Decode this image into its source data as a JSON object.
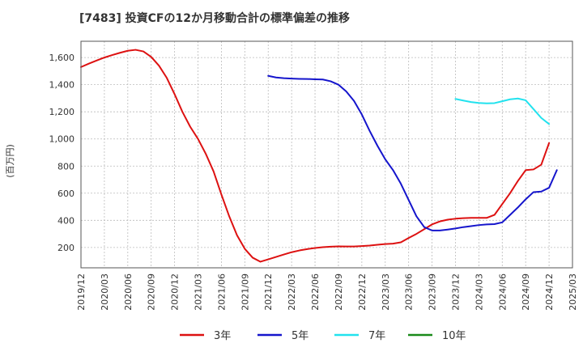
{
  "chart_data": {
    "type": "line",
    "title": "[7483]  投資CFの12か月移動合計の標準偏差の推移",
    "ylabel": "(百万円)",
    "xlabel": "",
    "ylim": [
      50,
      1720
    ],
    "yticks": [
      200,
      400,
      600,
      800,
      1000,
      1200,
      1400,
      1600
    ],
    "ytick_labels": [
      "200",
      "400",
      "600",
      "800",
      "1,000",
      "1,200",
      "1,400",
      "1,600"
    ],
    "xticks": [
      0,
      3,
      6,
      9,
      12,
      15,
      18,
      21,
      24,
      27,
      30,
      33,
      36,
      39,
      42,
      45,
      48,
      51,
      54,
      57,
      60,
      63
    ],
    "xtick_labels": [
      "2019/12",
      "2020/03",
      "2020/06",
      "2020/09",
      "2020/12",
      "2021/03",
      "2021/06",
      "2021/09",
      "2021/12",
      "2022/03",
      "2022/06",
      "2022/09",
      "2022/12",
      "2023/03",
      "2023/06",
      "2023/09",
      "2023/12",
      "2024/03",
      "2024/06",
      "2024/09",
      "2024/12",
      "2025/03"
    ],
    "xlim": [
      0,
      63
    ],
    "grid": true,
    "legend_position": "bottom",
    "series": [
      {
        "name": "3年",
        "color": "#dd1111",
        "start": 0,
        "values": [
          1530,
          1555,
          1578,
          1600,
          1618,
          1635,
          1650,
          1657,
          1645,
          1605,
          1540,
          1450,
          1330,
          1200,
          1090,
          1000,
          890,
          760,
          590,
          430,
          290,
          190,
          125,
          95,
          112,
          130,
          148,
          165,
          178,
          188,
          196,
          202,
          206,
          208,
          207,
          207,
          210,
          214,
          220,
          225,
          228,
          238,
          270,
          300,
          335,
          370,
          392,
          405,
          412,
          416,
          418,
          418,
          418,
          440,
          520,
          600,
          690,
          770,
          775,
          810,
          970
        ]
      },
      {
        "name": "5年",
        "color": "#1515cc",
        "start": 24,
        "values": [
          1465,
          1453,
          1448,
          1445,
          1443,
          1442,
          1440,
          1438,
          1425,
          1400,
          1350,
          1280,
          1180,
          1060,
          950,
          850,
          770,
          670,
          550,
          430,
          350,
          325,
          325,
          332,
          340,
          350,
          357,
          365,
          370,
          372,
          385,
          440,
          495,
          555,
          608,
          612,
          640,
          770
        ]
      },
      {
        "name": "7年",
        "color": "#22e2ee",
        "start": 48,
        "values": [
          1295,
          1283,
          1272,
          1265,
          1262,
          1264,
          1278,
          1292,
          1298,
          1285,
          1220,
          1155,
          1110
        ]
      },
      {
        "name": "10年",
        "color": "#1a8a1a",
        "start": null,
        "values": []
      }
    ]
  }
}
